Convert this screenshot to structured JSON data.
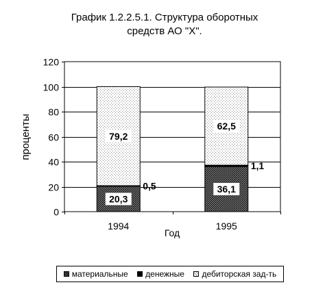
{
  "chart_data": {
    "type": "bar",
    "stacked": true,
    "title_line1": "График 1.2.2.5.1.  Структура оборотных",
    "title_line2": "средств АО \"Х\".",
    "xlabel": "Год",
    "ylabel": "проценты",
    "ylim": [
      0,
      120
    ],
    "yticks": [
      "0",
      "20",
      "40",
      "60",
      "80",
      "100",
      "120"
    ],
    "categories": [
      "1994",
      "1995"
    ],
    "series": [
      {
        "name": "материальные",
        "values": [
          20.3,
          36.1
        ],
        "labels": [
          "20,3",
          "36,1"
        ]
      },
      {
        "name": "денежные",
        "values": [
          0.5,
          1.1
        ],
        "labels": [
          "0,5",
          "1,1"
        ]
      },
      {
        "name": "дебиторская зад-ть",
        "values": [
          79.2,
          62.5
        ],
        "labels": [
          "79,2",
          "62,5"
        ]
      }
    ],
    "grid": true,
    "legend_position": "bottom"
  }
}
